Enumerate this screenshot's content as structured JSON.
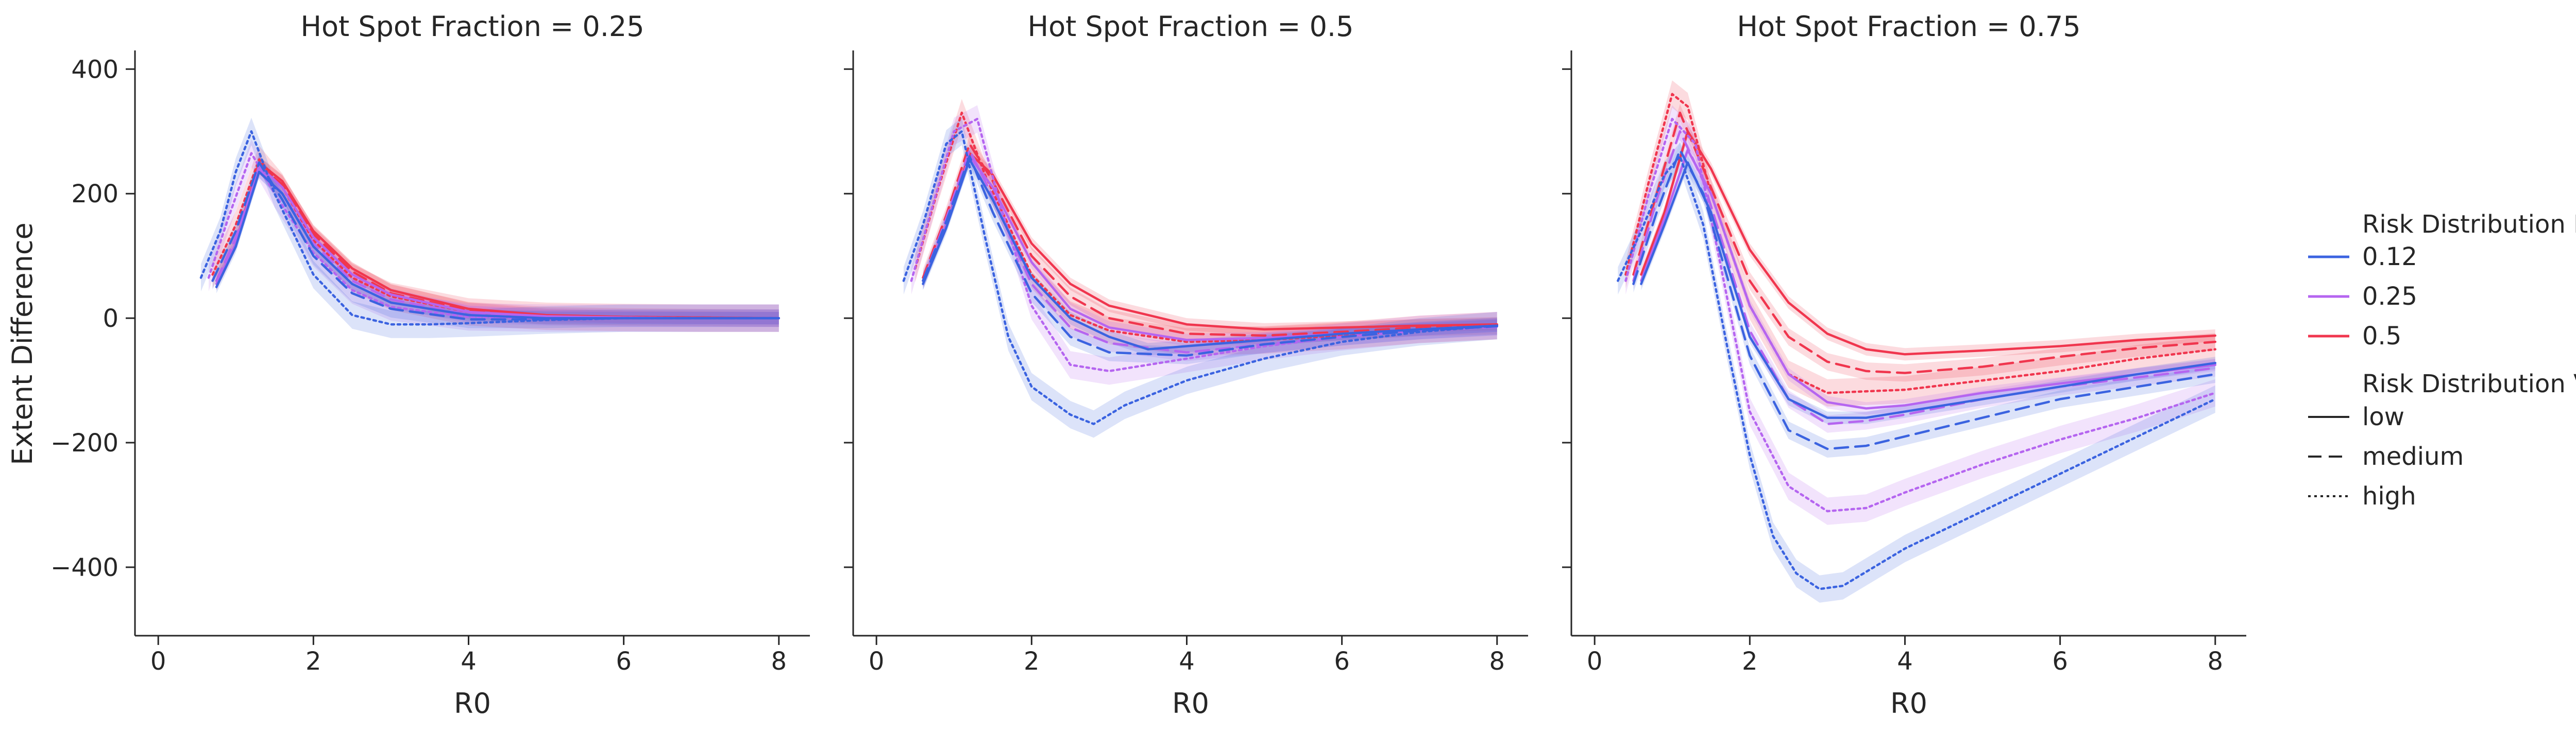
{
  "chart_data": {
    "type": "line",
    "x_label": "R0",
    "y_label": "Extent Difference",
    "xlim": [
      -0.3,
      8.4
    ],
    "ylim": [
      -510,
      430
    ],
    "x_ticks": [
      0,
      2,
      4,
      6,
      8
    ],
    "y_ticks": [
      -400,
      -200,
      0,
      200,
      400
    ],
    "x_tick_labels": [
      "0",
      "2",
      "4",
      "6",
      "8"
    ],
    "y_tick_labels": [
      "−400",
      "−200",
      "0",
      "200",
      "400"
    ],
    "grid": false,
    "legend_position": "right",
    "legend": {
      "mean_title": "Risk Distribution Mean",
      "variance_title": "Risk Distribution Variance",
      "means": [
        {
          "label": "0.12",
          "color": "#3b63e0"
        },
        {
          "label": "0.25",
          "color": "#b565f0"
        },
        {
          "label": "0.5",
          "color": "#f0364e"
        }
      ],
      "variances": [
        {
          "label": "low",
          "dash": "solid"
        },
        {
          "label": "medium",
          "dash": "dashed"
        },
        {
          "label": "high",
          "dash": "dotted"
        }
      ]
    },
    "panels": [
      {
        "title": "Hot Spot Fraction = 0.25",
        "series": [
          {
            "mean": "0.5",
            "variance": "low",
            "x": [
              0.75,
              1.0,
              1.3,
              1.6,
              2.0,
              2.5,
              3.0,
              4.0,
              5.0,
              6.0,
              7.0,
              8.0
            ],
            "y": [
              55,
              120,
              250,
              220,
              140,
              80,
              45,
              15,
              5,
              2,
              1,
              0
            ]
          },
          {
            "mean": "0.5",
            "variance": "medium",
            "x": [
              0.75,
              1.0,
              1.3,
              1.6,
              2.0,
              2.5,
              3.0,
              4.0,
              5.0,
              6.0,
              7.0,
              8.0
            ],
            "y": [
              60,
              130,
              245,
              215,
              135,
              75,
              40,
              12,
              4,
              2,
              1,
              0
            ]
          },
          {
            "mean": "0.5",
            "variance": "high",
            "x": [
              0.7,
              1.0,
              1.3,
              1.6,
              2.0,
              2.5,
              3.0,
              4.0,
              5.0,
              6.0,
              7.0,
              8.0
            ],
            "y": [
              70,
              150,
              255,
              210,
              125,
              65,
              35,
              10,
              3,
              1,
              0,
              0
            ]
          },
          {
            "mean": "0.25",
            "variance": "low",
            "x": [
              0.75,
              1.0,
              1.3,
              1.6,
              2.0,
              2.5,
              3.0,
              4.0,
              5.0,
              6.0,
              7.0,
              8.0
            ],
            "y": [
              55,
              120,
              245,
              210,
              130,
              70,
              38,
              10,
              3,
              1,
              0,
              0
            ]
          },
          {
            "mean": "0.25",
            "variance": "medium",
            "x": [
              0.75,
              1.0,
              1.3,
              1.6,
              2.0,
              2.5,
              3.0,
              4.0,
              5.0,
              6.0,
              7.0,
              8.0
            ],
            "y": [
              60,
              130,
              240,
              200,
              120,
              60,
              30,
              6,
              2,
              0,
              0,
              0
            ]
          },
          {
            "mean": "0.25",
            "variance": "high",
            "x": [
              0.65,
              0.9,
              1.2,
              1.5,
              2.0,
              2.5,
              3.0,
              4.0,
              5.0,
              6.0,
              7.0,
              8.0
            ],
            "y": [
              65,
              160,
              265,
              200,
              105,
              45,
              18,
              2,
              0,
              0,
              0,
              0
            ]
          },
          {
            "mean": "0.12",
            "variance": "low",
            "x": [
              0.75,
              1.0,
              1.3,
              1.6,
              2.0,
              2.5,
              3.0,
              4.0,
              5.0,
              6.0,
              7.0,
              8.0
            ],
            "y": [
              50,
              115,
              235,
              200,
              115,
              55,
              25,
              5,
              0,
              0,
              0,
              0
            ]
          },
          {
            "mean": "0.12",
            "variance": "medium",
            "x": [
              0.7,
              1.0,
              1.3,
              1.6,
              2.0,
              2.5,
              3.0,
              4.0,
              5.0,
              6.0,
              7.0,
              8.0
            ],
            "y": [
              60,
              140,
              250,
              190,
              100,
              40,
              15,
              -2,
              -2,
              0,
              0,
              0
            ]
          },
          {
            "mean": "0.12",
            "variance": "high",
            "x": [
              0.55,
              0.8,
              1.0,
              1.2,
              1.5,
              2.0,
              2.5,
              3.0,
              3.5,
              4.0,
              5.0,
              6.0,
              7.0,
              8.0
            ],
            "y": [
              65,
              140,
              235,
              300,
              200,
              70,
              5,
              -10,
              -10,
              -8,
              -3,
              0,
              0,
              0
            ]
          }
        ]
      },
      {
        "title": "Hot Spot Fraction = 0.5",
        "series": [
          {
            "mean": "0.5",
            "variance": "low",
            "x": [
              0.6,
              0.9,
              1.2,
              1.5,
              2.0,
              2.5,
              3.0,
              4.0,
              5.0,
              6.0,
              7.0,
              8.0
            ],
            "y": [
              60,
              150,
              265,
              230,
              120,
              55,
              20,
              -10,
              -18,
              -15,
              -12,
              -10
            ]
          },
          {
            "mean": "0.5",
            "variance": "medium",
            "x": [
              0.6,
              0.9,
              1.2,
              1.5,
              2.0,
              2.5,
              3.0,
              4.0,
              5.0,
              6.0,
              7.0,
              8.0
            ],
            "y": [
              65,
              165,
              280,
              220,
              100,
              35,
              0,
              -25,
              -28,
              -22,
              -15,
              -12
            ]
          },
          {
            "mean": "0.5",
            "variance": "high",
            "x": [
              0.5,
              0.8,
              1.1,
              1.4,
              2.0,
              2.5,
              3.0,
              4.0,
              5.0,
              6.0,
              7.0,
              8.0
            ],
            "y": [
              80,
              210,
              330,
              230,
              70,
              5,
              -20,
              -38,
              -35,
              -28,
              -18,
              -12
            ]
          },
          {
            "mean": "0.25",
            "variance": "low",
            "x": [
              0.6,
              0.9,
              1.2,
              1.5,
              2.0,
              2.5,
              3.0,
              4.0,
              5.0,
              6.0,
              7.0,
              8.0
            ],
            "y": [
              60,
              150,
              260,
              210,
              90,
              15,
              -15,
              -35,
              -32,
              -25,
              -18,
              -12
            ]
          },
          {
            "mean": "0.25",
            "variance": "medium",
            "x": [
              0.6,
              0.9,
              1.2,
              1.5,
              2.0,
              2.5,
              3.0,
              4.0,
              5.0,
              6.0,
              7.0,
              8.0
            ],
            "y": [
              60,
              160,
              270,
              195,
              55,
              -15,
              -40,
              -55,
              -42,
              -30,
              -20,
              -14
            ]
          },
          {
            "mean": "0.25",
            "variance": "high",
            "x": [
              0.45,
              0.7,
              1.0,
              1.3,
              1.6,
              2.0,
              2.5,
              3.0,
              4.0,
              5.0,
              6.0,
              7.0,
              8.0
            ],
            "y": [
              60,
              170,
              300,
              320,
              180,
              20,
              -75,
              -85,
              -65,
              -45,
              -30,
              -18,
              -12
            ]
          },
          {
            "mean": "0.12",
            "variance": "low",
            "x": [
              0.6,
              0.9,
              1.2,
              1.5,
              2.0,
              2.5,
              3.0,
              3.5,
              4.0,
              5.0,
              6.0,
              7.0,
              8.0
            ],
            "y": [
              55,
              145,
              255,
              190,
              65,
              0,
              -30,
              -50,
              -45,
              -35,
              -25,
              -18,
              -12
            ]
          },
          {
            "mean": "0.12",
            "variance": "medium",
            "x": [
              0.6,
              0.9,
              1.2,
              1.5,
              2.0,
              2.5,
              3.0,
              4.0,
              5.0,
              6.0,
              7.0,
              8.0
            ],
            "y": [
              60,
              155,
              260,
              170,
              40,
              -30,
              -55,
              -60,
              -42,
              -30,
              -20,
              -13
            ]
          },
          {
            "mean": "0.12",
            "variance": "high",
            "x": [
              0.35,
              0.6,
              0.9,
              1.1,
              1.4,
              1.7,
              2.0,
              2.5,
              2.8,
              3.2,
              4.0,
              5.0,
              6.0,
              7.0,
              8.0
            ],
            "y": [
              60,
              150,
              280,
              300,
              130,
              -30,
              -110,
              -155,
              -170,
              -140,
              -100,
              -65,
              -38,
              -22,
              -12
            ]
          }
        ]
      },
      {
        "title": "Hot Spot Fraction = 0.75",
        "series": [
          {
            "mean": "0.5",
            "variance": "low",
            "x": [
              0.6,
              0.9,
              1.2,
              1.5,
              2.0,
              2.5,
              3.0,
              3.5,
              4.0,
              5.0,
              6.0,
              7.0,
              8.0
            ],
            "y": [
              70,
              170,
              300,
              240,
              110,
              25,
              -25,
              -50,
              -58,
              -52,
              -45,
              -35,
              -28
            ]
          },
          {
            "mean": "0.5",
            "variance": "medium",
            "x": [
              0.5,
              0.8,
              1.1,
              1.4,
              2.0,
              2.5,
              3.0,
              3.5,
              4.0,
              5.0,
              6.0,
              7.0,
              8.0
            ],
            "y": [
              70,
              200,
              330,
              240,
              60,
              -30,
              -70,
              -85,
              -88,
              -78,
              -62,
              -48,
              -38
            ]
          },
          {
            "mean": "0.5",
            "variance": "high",
            "x": [
              0.4,
              0.7,
              1.0,
              1.2,
              1.5,
              2.0,
              2.5,
              3.0,
              4.0,
              5.0,
              6.0,
              7.0,
              8.0
            ],
            "y": [
              70,
              220,
              360,
              340,
              200,
              20,
              -90,
              -120,
              -115,
              -100,
              -85,
              -65,
              -50
            ]
          },
          {
            "mean": "0.25",
            "variance": "low",
            "x": [
              0.6,
              0.9,
              1.2,
              1.5,
              2.0,
              2.5,
              3.0,
              3.5,
              4.0,
              5.0,
              6.0,
              7.0,
              8.0
            ],
            "y": [
              60,
              160,
              270,
              200,
              20,
              -90,
              -135,
              -145,
              -140,
              -120,
              -105,
              -90,
              -75
            ]
          },
          {
            "mean": "0.25",
            "variance": "medium",
            "x": [
              0.5,
              0.8,
              1.1,
              1.4,
              2.0,
              2.5,
              3.0,
              3.5,
              4.0,
              5.0,
              6.0,
              7.0,
              8.0
            ],
            "y": [
              60,
              190,
              300,
              220,
              -20,
              -130,
              -170,
              -165,
              -155,
              -130,
              -110,
              -95,
              -80
            ]
          },
          {
            "mean": "0.25",
            "variance": "high",
            "x": [
              0.4,
              0.7,
              1.0,
              1.3,
              1.6,
              2.0,
              2.5,
              3.0,
              3.5,
              4.0,
              5.0,
              6.0,
              7.0,
              8.0
            ],
            "y": [
              60,
              200,
              320,
              280,
              100,
              -150,
              -270,
              -310,
              -305,
              -280,
              -235,
              -195,
              -160,
              -120
            ]
          },
          {
            "mean": "0.12",
            "variance": "low",
            "x": [
              0.6,
              0.9,
              1.2,
              1.5,
              2.0,
              2.5,
              3.0,
              3.5,
              4.0,
              5.0,
              6.0,
              7.0,
              8.0
            ],
            "y": [
              55,
              150,
              250,
              170,
              -30,
              -130,
              -160,
              -160,
              -150,
              -130,
              -110,
              -90,
              -72
            ]
          },
          {
            "mean": "0.12",
            "variance": "medium",
            "x": [
              0.5,
              0.8,
              1.1,
              1.4,
              2.0,
              2.5,
              3.0,
              3.5,
              4.0,
              5.0,
              6.0,
              7.0,
              8.0
            ],
            "y": [
              55,
              170,
              270,
              200,
              -60,
              -180,
              -210,
              -205,
              -190,
              -160,
              -130,
              -110,
              -90
            ]
          },
          {
            "mean": "0.12",
            "variance": "high",
            "x": [
              0.3,
              0.6,
              0.9,
              1.1,
              1.4,
              1.7,
              2.0,
              2.3,
              2.6,
              2.9,
              3.2,
              3.6,
              4.0,
              5.0,
              6.0,
              7.0,
              8.0
            ],
            "y": [
              60,
              140,
              230,
              260,
              150,
              -40,
              -220,
              -350,
              -410,
              -435,
              -430,
              -400,
              -370,
              -310,
              -250,
              -190,
              -130
            ]
          }
        ]
      }
    ]
  }
}
